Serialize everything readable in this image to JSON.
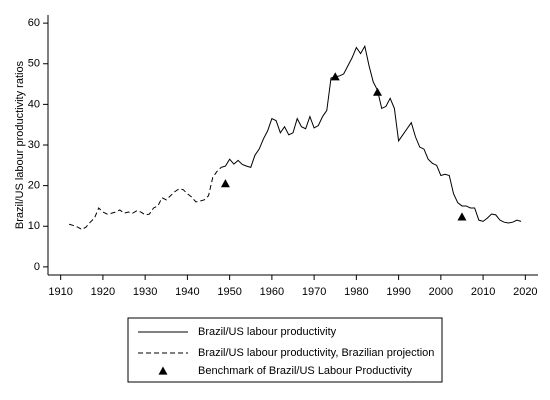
{
  "chart_data": {
    "type": "line",
    "ylabel": "Brazil/US labour productivity ratios",
    "xlim": [
      1907,
      2023
    ],
    "xticks": [
      1910,
      1920,
      1930,
      1940,
      1950,
      1960,
      1970,
      1980,
      1990,
      2000,
      2010,
      2020
    ],
    "ylim": [
      -2,
      62
    ],
    "yticks": [
      0,
      10,
      20,
      30,
      40,
      50,
      60
    ],
    "grid": false,
    "legend": "bottom",
    "series": [
      {
        "name": "Brazil/US labour productivity",
        "color": "#000000",
        "style": "solid",
        "x": [
          1948,
          1949,
          1950,
          1951,
          1952,
          1953,
          1954,
          1955,
          1956,
          1957,
          1958,
          1959,
          1960,
          1961,
          1962,
          1963,
          1964,
          1965,
          1966,
          1967,
          1968,
          1969,
          1970,
          1971,
          1972,
          1973,
          1974,
          1975,
          1976,
          1977,
          1978,
          1979,
          1980,
          1981,
          1982,
          1983,
          1984,
          1985,
          1986,
          1987,
          1988,
          1989,
          1990,
          1991,
          1992,
          1993,
          1994,
          1995,
          1996,
          1997,
          1998,
          1999,
          2000,
          2001,
          2002,
          2003,
          2004,
          2005,
          2006,
          2007,
          2008,
          2009,
          2010,
          2011,
          2012,
          2013,
          2014,
          2015,
          2016,
          2017,
          2018,
          2019
        ],
        "values": [
          24.5,
          24.8,
          26.5,
          25.3,
          26.2,
          25.2,
          24.8,
          24.5,
          27.5,
          29,
          31.5,
          33.5,
          36.5,
          36,
          33,
          34.5,
          32.5,
          33,
          36.5,
          34.5,
          34,
          37,
          34.2,
          34.8,
          37,
          38.5,
          46.5,
          46.8,
          47,
          47.5,
          49.5,
          51.5,
          54,
          52.5,
          54.3,
          49.5,
          45.5,
          43.5,
          39,
          39.5,
          41.5,
          39,
          31,
          32.5,
          34,
          35.5,
          32,
          29.5,
          29,
          26.5,
          25.5,
          25,
          22.5,
          22.8,
          22.5,
          18,
          15.8,
          15,
          15,
          14.5,
          14.5,
          11.5,
          11.2,
          12,
          13,
          12.8,
          11.5,
          11,
          10.8,
          11,
          11.5,
          11.2
        ]
      },
      {
        "name": "Brazil/US labour productivity, Brazilian projection",
        "color": "#000000",
        "style": "dashed",
        "x": [
          1912,
          1913,
          1914,
          1915,
          1916,
          1917,
          1918,
          1919,
          1920,
          1921,
          1922,
          1923,
          1924,
          1925,
          1926,
          1927,
          1928,
          1929,
          1930,
          1931,
          1932,
          1933,
          1934,
          1935,
          1936,
          1937,
          1938,
          1939,
          1940,
          1941,
          1942,
          1943,
          1944,
          1945,
          1946,
          1947,
          1948
        ],
        "values": [
          10.5,
          10.2,
          9.8,
          9.2,
          9.8,
          11,
          12,
          14.5,
          13.5,
          13,
          13.2,
          13.5,
          14,
          13.2,
          13.5,
          13.2,
          13.8,
          13.5,
          12.8,
          13,
          14.5,
          15,
          17,
          16.5,
          17.5,
          18.5,
          19.2,
          19,
          18,
          17.2,
          16,
          16.2,
          16.5,
          17.5,
          22,
          23.5,
          24.5
        ]
      },
      {
        "name": "Benchmark of Brazil/US Labour Productivity",
        "color": "#000000",
        "type": "scatter",
        "marker": "triangle",
        "x": [
          1949,
          1975,
          1985,
          2005
        ],
        "values": [
          20.5,
          46.8,
          43,
          12.3
        ]
      }
    ]
  }
}
